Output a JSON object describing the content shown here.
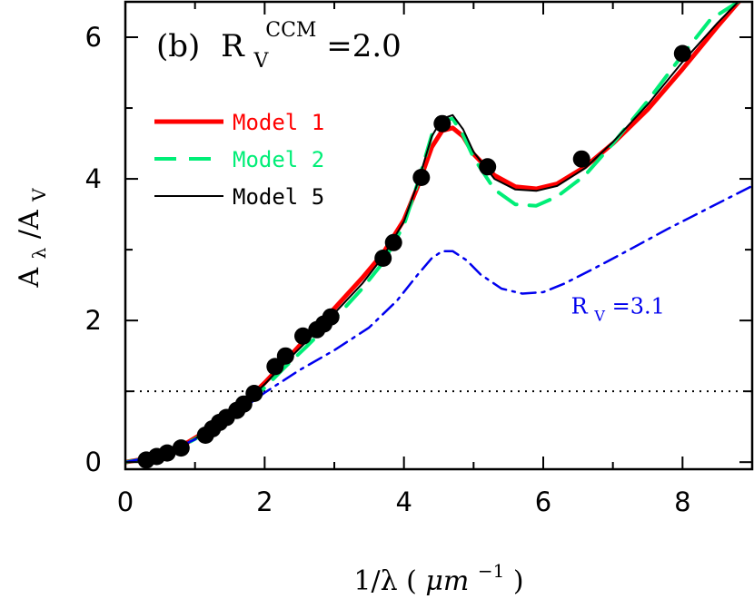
{
  "chart_data": {
    "type": "line",
    "panel_label": "(b)",
    "annotation": {
      "symbol": "R",
      "subscript": "V",
      "superscript": "CCM",
      "value": "=2.0"
    },
    "xlabel": {
      "main": "1/λ (",
      "unit": "μm",
      "exp": "−1",
      "close": ")"
    },
    "ylabel": {
      "main": "A",
      "sub_num": "λ",
      "sep": "/A",
      "sub_den": "V"
    },
    "xlim": [
      0,
      9
    ],
    "ylim": [
      -0.1,
      6.5
    ],
    "xticks": [
      "0",
      "2",
      "4",
      "6",
      "8"
    ],
    "xtick_values": [
      0,
      2,
      4,
      6,
      8
    ],
    "yticks": [
      "0",
      "2",
      "4",
      "6"
    ],
    "ytick_values": [
      0,
      2,
      4,
      6
    ],
    "reference_line": {
      "y": 1,
      "style": "dotted"
    },
    "rv_label": {
      "symbol": "R",
      "subscript": "V",
      "value": "=3.1",
      "x": 6.4,
      "y": 2.1
    },
    "legend": [
      {
        "label": "Model 1",
        "color": "#ff0000",
        "style": "solid-thick"
      },
      {
        "label": "Model 2",
        "color": "#00ee77",
        "style": "dashed"
      },
      {
        "label": "Model 5",
        "color": "#000000",
        "style": "solid-thin"
      }
    ],
    "observed_points": {
      "x": [
        0.3,
        0.45,
        0.6,
        0.8,
        1.15,
        1.25,
        1.35,
        1.45,
        1.6,
        1.7,
        1.85,
        2.15,
        2.3,
        2.55,
        2.75,
        2.85,
        2.95,
        3.7,
        3.85,
        4.25,
        4.55,
        5.2,
        6.55,
        8.0
      ],
      "y": [
        0.03,
        0.08,
        0.13,
        0.2,
        0.38,
        0.47,
        0.56,
        0.63,
        0.73,
        0.82,
        0.97,
        1.35,
        1.5,
        1.78,
        1.87,
        1.95,
        2.05,
        2.88,
        3.1,
        4.02,
        4.78,
        4.17,
        4.28,
        5.77
      ]
    },
    "series": [
      {
        "name": "Model 1",
        "color": "#ff0000",
        "x": [
          0,
          0.3,
          0.6,
          0.9,
          1.2,
          1.5,
          1.8,
          2.0,
          2.3,
          2.6,
          3.0,
          3.4,
          3.7,
          4.0,
          4.2,
          4.4,
          4.55,
          4.7,
          4.85,
          5.0,
          5.3,
          5.6,
          5.9,
          6.2,
          6.6,
          7.0,
          7.5,
          8.0,
          8.5,
          8.85
        ],
        "y": [
          0,
          0.05,
          0.14,
          0.28,
          0.46,
          0.67,
          0.93,
          1.12,
          1.43,
          1.75,
          2.17,
          2.6,
          2.95,
          3.42,
          3.9,
          4.45,
          4.68,
          4.72,
          4.6,
          4.35,
          4.05,
          3.89,
          3.86,
          3.93,
          4.17,
          4.5,
          4.98,
          5.55,
          6.15,
          6.55
        ]
      },
      {
        "name": "Model 2",
        "color": "#00ee77",
        "x": [
          0,
          0.3,
          0.6,
          0.9,
          1.2,
          1.5,
          1.8,
          2.0,
          2.3,
          2.6,
          3.0,
          3.4,
          3.7,
          4.0,
          4.2,
          4.4,
          4.55,
          4.7,
          4.85,
          5.0,
          5.3,
          5.6,
          5.9,
          6.2,
          6.6,
          7.0,
          7.5,
          8.0,
          8.4,
          8.8
        ],
        "y": [
          0,
          0.05,
          0.14,
          0.27,
          0.44,
          0.64,
          0.88,
          1.05,
          1.35,
          1.63,
          2.02,
          2.45,
          2.82,
          3.35,
          3.95,
          4.62,
          4.83,
          4.85,
          4.62,
          4.3,
          3.85,
          3.64,
          3.62,
          3.75,
          4.05,
          4.5,
          5.1,
          5.75,
          6.25,
          6.5
        ]
      },
      {
        "name": "Model 5",
        "color": "#000000",
        "x": [
          0,
          0.3,
          0.6,
          0.9,
          1.2,
          1.5,
          1.8,
          2.0,
          2.3,
          2.6,
          3.0,
          3.4,
          3.7,
          4.0,
          4.2,
          4.4,
          4.55,
          4.7,
          4.85,
          5.0,
          5.3,
          5.6,
          5.9,
          6.2,
          6.6,
          7.0,
          7.5,
          8.0,
          8.5,
          8.9
        ],
        "y": [
          0,
          0.05,
          0.14,
          0.27,
          0.45,
          0.66,
          0.91,
          1.1,
          1.41,
          1.7,
          2.1,
          2.52,
          2.9,
          3.4,
          3.95,
          4.6,
          4.85,
          4.9,
          4.7,
          4.38,
          4.0,
          3.85,
          3.83,
          3.9,
          4.15,
          4.52,
          5.05,
          5.65,
          6.2,
          6.6
        ]
      },
      {
        "name": "",
        "color": "#0000ee",
        "style": "dash-dot",
        "x": [
          0,
          0.5,
          1.0,
          1.5,
          2.0,
          2.5,
          3.0,
          3.5,
          3.9,
          4.2,
          4.4,
          4.55,
          4.7,
          4.9,
          5.1,
          5.4,
          5.7,
          6.0,
          6.3,
          6.7,
          7.2,
          7.8,
          8.4,
          9.0
        ],
        "y": [
          0,
          0.1,
          0.32,
          0.62,
          0.98,
          1.3,
          1.58,
          1.9,
          2.28,
          2.65,
          2.88,
          2.98,
          2.98,
          2.85,
          2.65,
          2.45,
          2.38,
          2.4,
          2.52,
          2.72,
          2.98,
          3.3,
          3.6,
          3.9
        ]
      }
    ]
  }
}
